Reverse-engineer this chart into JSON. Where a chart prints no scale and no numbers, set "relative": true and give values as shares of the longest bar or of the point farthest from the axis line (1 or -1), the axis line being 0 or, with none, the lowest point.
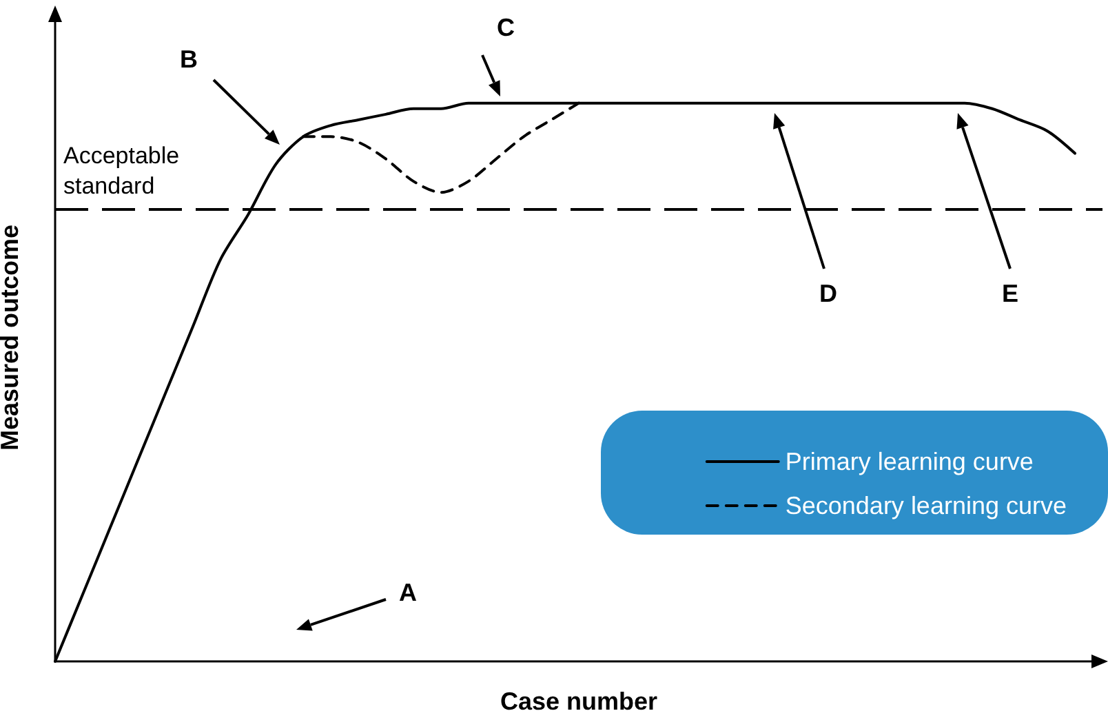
{
  "chart_data": {
    "type": "line",
    "xlabel": "Case number",
    "ylabel": "Measured outcome",
    "relative": true,
    "categories": [
      null,
      null,
      null,
      null,
      null,
      null,
      null,
      null,
      null,
      null,
      null,
      null,
      null,
      null,
      null,
      null,
      null,
      null,
      null,
      null,
      null,
      null,
      null,
      null,
      null,
      null,
      null,
      null,
      null,
      null,
      null,
      null,
      null,
      null,
      null,
      null,
      null,
      null,
      null
    ],
    "series": [
      {
        "name": "Primary learning curve",
        "color": "#000000",
        "line_style": "solid",
        "values": [
          0,
          0.12,
          0.24,
          0.36,
          0.48,
          0.6,
          0.72,
          0.8,
          0.89,
          0.94,
          0.96,
          0.97,
          0.98,
          0.99,
          0.99,
          1,
          1,
          1,
          1,
          1,
          1,
          1,
          1,
          1,
          1,
          1,
          1,
          1,
          1,
          1,
          1,
          1,
          1,
          1,
          0.99,
          0.97,
          0.95,
          0.91,
          null
        ]
      },
      {
        "name": "Secondary learning curve",
        "color": "#000000",
        "line_style": "dashed",
        "values": [
          null,
          null,
          null,
          null,
          null,
          null,
          null,
          null,
          null,
          0.94,
          0.94,
          0.93,
          0.9,
          0.86,
          0.84,
          0.86,
          0.9,
          0.94,
          0.97,
          1,
          null,
          null,
          null,
          null,
          null,
          null,
          null,
          null,
          null,
          null,
          null,
          null,
          null,
          null,
          null,
          null,
          null,
          null,
          null
        ]
      }
    ],
    "ref_lines": [
      {
        "axis": "y",
        "value": 0.81,
        "label": "Acceptable standard",
        "color": "#000000",
        "line_style": "dashed"
      }
    ],
    "annotations": [
      "A",
      "B",
      "C",
      "D",
      "E"
    ],
    "marker": "none",
    "grid": false,
    "legend": "bottom right"
  }
}
